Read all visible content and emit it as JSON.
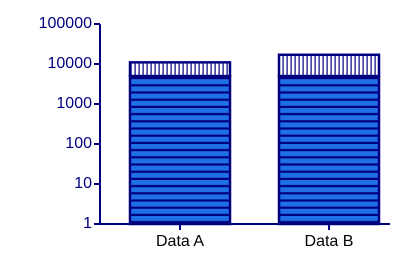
{
  "chart_data": {
    "type": "bar",
    "stacked": true,
    "log_scale": true,
    "categories": [
      "Data A",
      "Data B"
    ],
    "series": [
      {
        "color": "#1f6fe6",
        "edge_color": "#00007f",
        "pattern": "horizontal",
        "values": [
          5000,
          5000
        ]
      },
      {
        "color": "#ffffff",
        "edge_color": "#00007f",
        "pattern": "vertical",
        "values": [
          6000,
          12000
        ]
      }
    ],
    "axis_color": "#00007f",
    "ylim": [
      1,
      100000
    ],
    "yticks": [
      1,
      10,
      100,
      1000,
      10000,
      100000
    ]
  }
}
